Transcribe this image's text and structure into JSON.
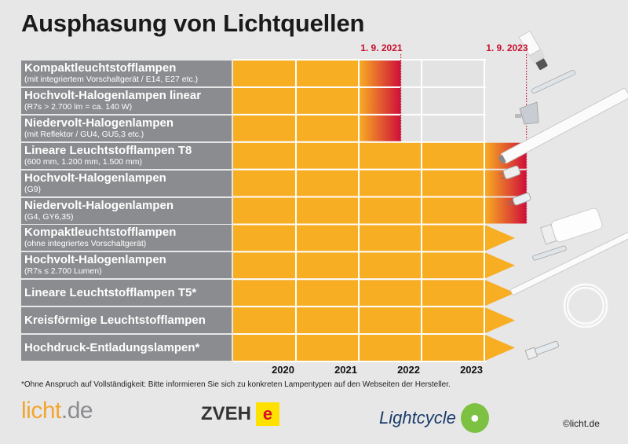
{
  "title": "Ausphasung von Lichtquellen",
  "chart_data": {
    "type": "gantt",
    "title": "Ausphasung von Lichtquellen",
    "x_axis": {
      "start": 2019,
      "end": 2023,
      "tick_labels": [
        "2020",
        "2021",
        "2022",
        "2023"
      ]
    },
    "deadline_labels": [
      {
        "label": "1. 9. 2021",
        "value": 2021.67
      },
      {
        "label": "1. 9. 2023",
        "value": 2023.67
      }
    ],
    "rows": [
      {
        "name": "Kompaktleuchtstofflampen",
        "detail": "(mit integriertem Vorschaltgerät / E14, E27 etc.)",
        "end": 2021.67,
        "ongoing": false
      },
      {
        "name": "Hochvolt-Halogenlampen linear",
        "detail": "(R7s > 2.700 lm = ca. 140 W)",
        "end": 2021.67,
        "ongoing": false
      },
      {
        "name": "Niedervolt-Halogenlampen",
        "detail": "(mit Reflektor / GU4, GU5,3 etc.)",
        "end": 2021.67,
        "ongoing": false
      },
      {
        "name": "Lineare Leuchtstofflampen T8",
        "detail": "(600 mm, 1.200 mm, 1.500 mm)",
        "end": 2023.67,
        "ongoing": false
      },
      {
        "name": "Hochvolt-Halogenlampen",
        "detail": "(G9)",
        "end": 2023.67,
        "ongoing": false
      },
      {
        "name": "Niedervolt-Halogenlampen",
        "detail": "(G4, GY6,35)",
        "end": 2023.67,
        "ongoing": false
      },
      {
        "name": "Kompaktleuchtstofflampen",
        "detail": "(ohne integriertes Vorschaltgerät)",
        "end": null,
        "ongoing": true
      },
      {
        "name": "Hochvolt-Halogenlampen",
        "detail": "(R7s ≤ 2.700 Lumen)",
        "end": null,
        "ongoing": true
      },
      {
        "name": "Lineare Leuchtstofflampen T5*",
        "detail": "",
        "end": null,
        "ongoing": true
      },
      {
        "name": "Kreisförmige Leuchtstofflampen",
        "detail": "",
        "end": null,
        "ongoing": true
      },
      {
        "name": "Hochdruck-Entladungslampen*",
        "detail": "",
        "end": null,
        "ongoing": true
      }
    ],
    "colors": {
      "bar": "#f8ae23",
      "phaseout": "#cf0f3a",
      "label_bg": "#8b8c8f",
      "deadline": "#c8102e"
    }
  },
  "footnote": "*Ohne Anspruch auf Vollständigkeit: Bitte informieren Sie sich zu konkreten Lampentypen auf den Webseiten der Hersteller.",
  "logos": {
    "licht": "licht.de",
    "zveh": "ZVEH",
    "lightcycle": "Lightcycle"
  },
  "copyright": "©licht.de"
}
